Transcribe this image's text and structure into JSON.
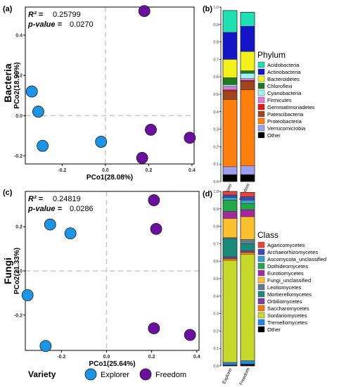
{
  "colors": {
    "Explorer": "#1b96e6",
    "Freedom": "#6a0f9e",
    "zero_line": "#c8c8c8"
  },
  "chart_data": [
    {
      "type": "scatter",
      "panel": "(a)",
      "row_label": "Bacteria",
      "stats": {
        "r2_label": "R² =",
        "r2_value": "0.25799",
        "p_label": "p-value =",
        "p_value": "0.0270"
      },
      "xlabel": "PCo1(28.08%)",
      "ylabel": "PCo2(18.99%)",
      "xlim": [
        -0.37,
        0.41
      ],
      "ylim": [
        -0.24,
        0.54
      ],
      "xticks": [
        -0.2,
        0.0,
        0.2,
        0.4
      ],
      "xtick_labels": [
        "-0.2",
        "0.0",
        "0.2",
        "0.4"
      ],
      "yticks": [
        -0.2,
        0.0,
        0.2,
        0.4
      ],
      "ytick_labels": [
        "-0.2",
        "0.0",
        "0.2",
        "0.4"
      ],
      "series": [
        {
          "name": "Explorer",
          "points": [
            [
              -0.34,
              0.12
            ],
            [
              -0.31,
              0.02
            ],
            [
              -0.29,
              -0.15
            ],
            [
              -0.02,
              -0.13
            ]
          ]
        },
        {
          "name": "Freedom",
          "points": [
            [
              0.18,
              0.52
            ],
            [
              0.21,
              -0.07
            ],
            [
              0.39,
              -0.11
            ],
            [
              0.17,
              -0.21
            ]
          ]
        }
      ]
    },
    {
      "type": "scatter",
      "panel": "(c)",
      "row_label": "Fungi",
      "stats": {
        "r2_label": "R² =",
        "r2_value": "0.24819",
        "p_label": "p-value =",
        "p_value": "0.0286"
      },
      "xlabel": "PCo1(25.64%)",
      "ylabel": "PCo2(21.33%)",
      "xlim": [
        -0.36,
        0.41
      ],
      "ylim": [
        -0.36,
        0.36
      ],
      "xticks": [
        -0.2,
        0.0,
        0.2,
        0.4
      ],
      "xtick_labels": [
        "-0.2",
        "0.0",
        "0.2",
        "0.4"
      ],
      "yticks": [
        -0.2,
        0.0,
        0.2
      ],
      "ytick_labels": [
        "-0.2",
        "0.0",
        "0.2"
      ],
      "series": [
        {
          "name": "Explorer",
          "points": [
            [
              -0.25,
              0.21
            ],
            [
              -0.16,
              0.17
            ],
            [
              -0.35,
              -0.11
            ],
            [
              -0.27,
              -0.34
            ]
          ]
        },
        {
          "name": "Freedom",
          "points": [
            [
              0.21,
              0.32
            ],
            [
              0.22,
              0.19
            ],
            [
              0.21,
              -0.26
            ],
            [
              0.37,
              -0.29
            ]
          ]
        }
      ]
    },
    {
      "type": "bar",
      "stacked": true,
      "panel": "(b)",
      "legend_title": "Phylum",
      "categories": [
        "Explorer",
        "Freedom"
      ],
      "ylim": [
        0,
        1.0
      ],
      "yticks": [
        0,
        0.1,
        0.2,
        0.3,
        0.4,
        0.5,
        0.6,
        0.7,
        0.8,
        0.9,
        1.0
      ],
      "ytick_labels": [
        "0.0",
        "0.1",
        "0.2",
        "0.3",
        "0.4",
        "0.5",
        "0.6",
        "0.7",
        "0.8",
        "0.9",
        "1.0"
      ],
      "series": [
        {
          "name": "Acidobacteria",
          "color": "#1fe0b3",
          "values": [
            0.125,
            0.08
          ]
        },
        {
          "name": "Actinobacteria",
          "color": "#1414c8",
          "values": [
            0.155,
            0.145
          ]
        },
        {
          "name": "Bacteroidetes",
          "color": "#f2f21a",
          "values": [
            0.105,
            0.11
          ]
        },
        {
          "name": "Chloroflexi",
          "color": "#1f7a1f",
          "values": [
            0.04,
            0.015
          ]
        },
        {
          "name": "Cyanobacteria",
          "color": "#9ef2ef",
          "values": [
            0.01,
            0.03
          ]
        },
        {
          "name": "Firmicutes",
          "color": "#e07ad8",
          "values": [
            0.02,
            0.01
          ]
        },
        {
          "name": "Gemmatimonadetes",
          "color": "#e01a1a",
          "values": [
            0.005,
            0.005
          ]
        },
        {
          "name": "Patescibacteria",
          "color": "#a0461e",
          "values": [
            0.05,
            0.05
          ]
        },
        {
          "name": "Proteobacteria",
          "color": "#ff7f0e",
          "values": [
            0.385,
            0.435
          ]
        },
        {
          "name": "Verrucomicrobia",
          "color": "#9f9ff0",
          "values": [
            0.045,
            0.05
          ]
        },
        {
          "name": "Other",
          "color": "#000000",
          "values": [
            0.04,
            0.04
          ]
        }
      ]
    },
    {
      "type": "bar",
      "stacked": true,
      "panel": "(d)",
      "legend_title": "Class",
      "categories": [
        "Explorer",
        "Freedom"
      ],
      "ylim": [
        0,
        1.0
      ],
      "yticks": [
        0,
        0.1,
        0.2,
        0.3,
        0.4,
        0.5,
        0.6,
        0.7,
        0.8,
        0.9,
        1.0
      ],
      "ytick_labels": [
        "0.0",
        "0.1",
        "0.2",
        "0.3",
        "0.4",
        "0.5",
        "0.6",
        "0.7",
        "0.8",
        "0.9",
        "1.0"
      ],
      "series": [
        {
          "name": "Agaricomycetes",
          "color": "#e8443a",
          "values": [
            0.02,
            0.025
          ]
        },
        {
          "name": "Archaeorhizomycetes",
          "color": "#3f4db3",
          "values": [
            0.015,
            0.02
          ]
        },
        {
          "name": "Ascomycota_unclassified",
          "color": "#3aa0c8",
          "values": [
            0.015,
            0.02
          ]
        },
        {
          "name": "Dothideomycetes",
          "color": "#22a84a",
          "values": [
            0.065,
            0.035
          ]
        },
        {
          "name": "Eurotiomycetes",
          "color": "#a52a9e",
          "values": [
            0.04,
            0.04
          ]
        },
        {
          "name": "Fungi_unclassified",
          "color": "#fbc02d",
          "values": [
            0.11,
            0.13
          ]
        },
        {
          "name": "Leotiomycetes",
          "color": "#607d8b",
          "values": [
            0.005,
            0.025
          ]
        },
        {
          "name": "Mortierellomycetes",
          "color": "#1a8a7a",
          "values": [
            0.105,
            0.04
          ]
        },
        {
          "name": "Orbiliomycetes",
          "color": "#7b3fa0",
          "values": [
            0.01,
            0.01
          ]
        },
        {
          "name": "Saccharomycetes",
          "color": "#f57c00",
          "values": [
            0.01,
            0.01
          ]
        },
        {
          "name": "Sordariomycetes",
          "color": "#c6d92a",
          "values": [
            0.585,
            0.61
          ]
        },
        {
          "name": "Tremellomycetes",
          "color": "#1e88e5",
          "values": [
            0.015,
            0.02
          ]
        },
        {
          "name": "Other",
          "color": "#000000",
          "values": [
            0.005,
            0.01
          ]
        }
      ]
    }
  ],
  "legend": {
    "title": "Variety",
    "items": [
      {
        "label": "Explorer",
        "key": "Explorer"
      },
      {
        "label": "Freedom",
        "key": "Freedom"
      }
    ]
  }
}
